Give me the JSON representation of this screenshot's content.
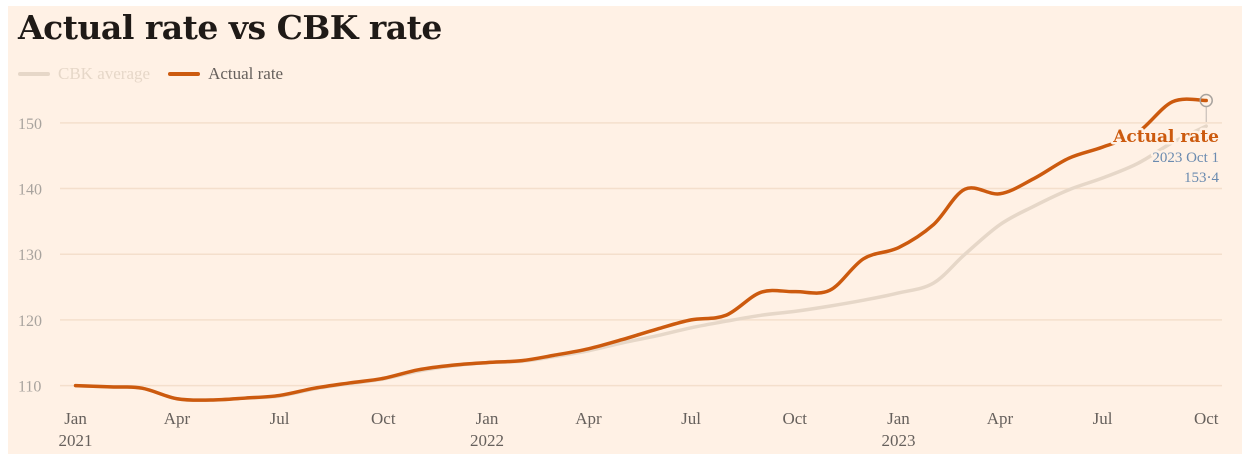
{
  "chart_data": {
    "type": "line",
    "title": "Actual rate vs CBK rate",
    "xlabel": "",
    "ylabel": "",
    "x_ticks": [
      {
        "label": "Jan",
        "year": "2021",
        "date": "2021-01-01"
      },
      {
        "label": "Apr",
        "year": "",
        "date": "2021-04-01"
      },
      {
        "label": "Jul",
        "year": "",
        "date": "2021-07-01"
      },
      {
        "label": "Oct",
        "year": "",
        "date": "2021-10-01"
      },
      {
        "label": "Jan",
        "year": "2022",
        "date": "2022-01-01"
      },
      {
        "label": "Apr",
        "year": "",
        "date": "2022-04-01"
      },
      {
        "label": "Jul",
        "year": "",
        "date": "2022-07-01"
      },
      {
        "label": "Oct",
        "year": "",
        "date": "2022-10-01"
      },
      {
        "label": "Jan",
        "year": "2023",
        "date": "2023-01-01"
      },
      {
        "label": "Apr",
        "year": "",
        "date": "2023-04-01"
      },
      {
        "label": "Jul",
        "year": "",
        "date": "2023-07-01"
      },
      {
        "label": "Oct",
        "year": "",
        "date": "2023-10-01"
      }
    ],
    "y_ticks": [
      110,
      120,
      130,
      140,
      150
    ],
    "ylim": [
      107.5,
      155
    ],
    "xlim": [
      "2020-12-20",
      "2023-10-15"
    ],
    "grid": true,
    "legend_position": "top-left",
    "series": [
      {
        "name": "CBK average",
        "color": "#e6d7c8",
        "points": [
          [
            "2021-01-01",
            110.0
          ],
          [
            "2021-02-01",
            109.8
          ],
          [
            "2021-03-01",
            109.6
          ],
          [
            "2021-04-01",
            108.0
          ],
          [
            "2021-05-01",
            107.8
          ],
          [
            "2021-06-01",
            108.1
          ],
          [
            "2021-07-01",
            108.4
          ],
          [
            "2021-08-01",
            109.5
          ],
          [
            "2021-09-01",
            110.3
          ],
          [
            "2021-10-01",
            111.0
          ],
          [
            "2021-11-01",
            112.2
          ],
          [
            "2021-12-01",
            113.0
          ],
          [
            "2022-01-01",
            113.5
          ],
          [
            "2022-02-01",
            113.7
          ],
          [
            "2022-03-01",
            114.4
          ],
          [
            "2022-04-01",
            115.3
          ],
          [
            "2022-05-01",
            116.5
          ],
          [
            "2022-06-01",
            117.6
          ],
          [
            "2022-07-01",
            118.8
          ],
          [
            "2022-08-01",
            119.8
          ],
          [
            "2022-09-01",
            120.7
          ],
          [
            "2022-10-01",
            121.3
          ],
          [
            "2022-11-01",
            122.1
          ],
          [
            "2022-12-01",
            123.0
          ],
          [
            "2023-01-01",
            124.1
          ],
          [
            "2023-02-01",
            125.6
          ],
          [
            "2023-03-01",
            130.0
          ],
          [
            "2023-04-01",
            134.5
          ],
          [
            "2023-05-01",
            137.3
          ],
          [
            "2023-06-01",
            139.8
          ],
          [
            "2023-07-01",
            141.6
          ],
          [
            "2023-08-01",
            143.8
          ],
          [
            "2023-09-01",
            147.0
          ],
          [
            "2023-10-01",
            149.5
          ]
        ]
      },
      {
        "name": "Actual rate",
        "color": "#cc5a0e",
        "points": [
          [
            "2021-01-01",
            110.0
          ],
          [
            "2021-02-01",
            109.8
          ],
          [
            "2021-03-01",
            109.6
          ],
          [
            "2021-04-01",
            108.0
          ],
          [
            "2021-05-01",
            107.8
          ],
          [
            "2021-06-01",
            108.1
          ],
          [
            "2021-07-01",
            108.5
          ],
          [
            "2021-08-01",
            109.6
          ],
          [
            "2021-09-01",
            110.4
          ],
          [
            "2021-10-01",
            111.1
          ],
          [
            "2021-11-01",
            112.4
          ],
          [
            "2021-12-01",
            113.1
          ],
          [
            "2022-01-01",
            113.5
          ],
          [
            "2022-02-01",
            113.8
          ],
          [
            "2022-03-01",
            114.6
          ],
          [
            "2022-04-01",
            115.6
          ],
          [
            "2022-05-01",
            117.0
          ],
          [
            "2022-06-01",
            118.6
          ],
          [
            "2022-07-01",
            120.0
          ],
          [
            "2022-08-01",
            120.7
          ],
          [
            "2022-09-01",
            124.2
          ],
          [
            "2022-10-01",
            124.3
          ],
          [
            "2022-11-01",
            124.5
          ],
          [
            "2022-12-01",
            129.3
          ],
          [
            "2023-01-01",
            131.0
          ],
          [
            "2023-02-01",
            134.5
          ],
          [
            "2023-03-01",
            139.9
          ],
          [
            "2023-04-01",
            139.2
          ],
          [
            "2023-05-01",
            141.5
          ],
          [
            "2023-06-01",
            144.6
          ],
          [
            "2023-07-01",
            146.3
          ],
          [
            "2023-08-01",
            148.5
          ],
          [
            "2023-09-01",
            153.2
          ],
          [
            "2023-10-01",
            153.4
          ]
        ]
      }
    ],
    "annotation": {
      "series_name": "Actual rate",
      "date_label": "2023 Oct 1",
      "value_label": "153·4",
      "date": "2023-10-01",
      "value": 153.4
    }
  }
}
